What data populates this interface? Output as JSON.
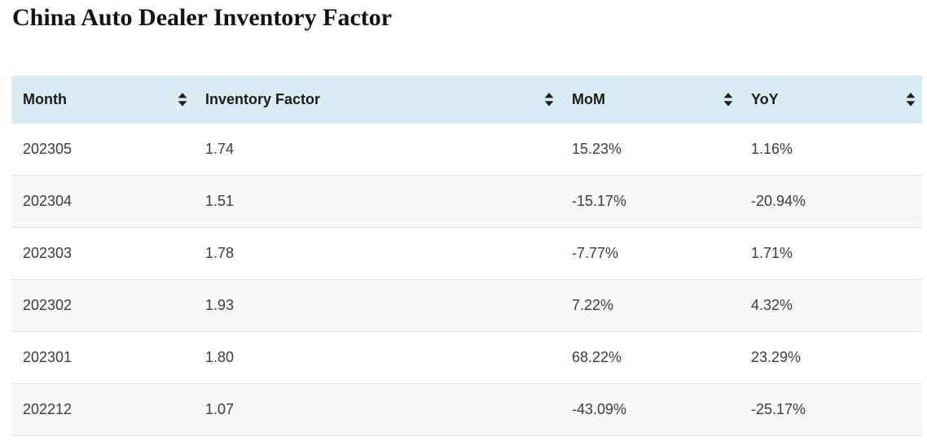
{
  "page": {
    "title": "China Auto Dealer Inventory Factor"
  },
  "table": {
    "columns": [
      {
        "key": "month",
        "label": "Month"
      },
      {
        "key": "inventory-factor",
        "label": "Inventory Factor"
      },
      {
        "key": "mom",
        "label": "MoM"
      },
      {
        "key": "yoy",
        "label": "YoY"
      }
    ],
    "rows": [
      [
        "202305",
        "1.74",
        "15.23%",
        "1.16%"
      ],
      [
        "202304",
        "1.51",
        "-15.17%",
        "-20.94%"
      ],
      [
        "202303",
        "1.78",
        "-7.77%",
        "1.71%"
      ],
      [
        "202302",
        "1.93",
        "7.22%",
        "4.32%"
      ],
      [
        "202301",
        "1.80",
        "68.22%",
        "23.29%"
      ],
      [
        "202212",
        "1.07",
        "-43.09%",
        "-25.17%"
      ]
    ]
  },
  "icons": {
    "sort": "sort-arrows-icon"
  },
  "colors": {
    "header_bg": "#d9ecf4",
    "row_alt_bg": "#f7f7f7",
    "row_border": "#e2e2e2",
    "header_text": "#1b1b1b",
    "body_text": "#3d3d3d",
    "title_text": "#141414",
    "sort_icon": "#1e1e1e"
  }
}
